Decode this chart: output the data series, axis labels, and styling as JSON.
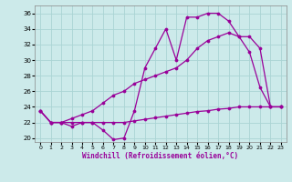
{
  "xlabel": "Windchill (Refroidissement éolien,°C)",
  "bg_color": "#cceaea",
  "line_color": "#990099",
  "grid_color": "#aad4d4",
  "ylim": [
    19.5,
    37.0
  ],
  "xlim": [
    -0.5,
    23.5
  ],
  "yticks": [
    20,
    22,
    24,
    26,
    28,
    30,
    32,
    34,
    36
  ],
  "xticks": [
    0,
    1,
    2,
    3,
    4,
    5,
    6,
    7,
    8,
    9,
    10,
    11,
    12,
    13,
    14,
    15,
    16,
    17,
    18,
    19,
    20,
    21,
    22,
    23
  ],
  "line1_x": [
    0,
    1,
    2,
    3,
    4,
    5,
    6,
    7,
    8,
    9,
    10,
    11,
    12,
    13,
    14,
    15,
    16,
    17,
    18,
    19,
    20,
    21,
    22,
    23
  ],
  "line1_y": [
    23.5,
    22.0,
    22.0,
    21.5,
    22.0,
    22.0,
    21.0,
    19.8,
    20.0,
    23.5,
    29.0,
    31.5,
    34.0,
    30.0,
    35.5,
    35.5,
    36.0,
    36.0,
    35.0,
    33.0,
    31.0,
    26.5,
    24.0,
    24.0
  ],
  "line2_x": [
    0,
    1,
    2,
    3,
    4,
    5,
    6,
    7,
    8,
    9,
    10,
    11,
    12,
    13,
    14,
    15,
    16,
    17,
    18,
    19,
    20,
    21,
    22,
    23
  ],
  "line2_y": [
    23.5,
    22.0,
    22.0,
    22.5,
    23.0,
    23.5,
    24.5,
    25.5,
    26.0,
    27.0,
    27.5,
    28.0,
    28.5,
    29.0,
    30.0,
    31.5,
    32.5,
    33.0,
    33.5,
    33.0,
    33.0,
    31.5,
    24.0,
    24.0
  ],
  "line3_x": [
    0,
    1,
    2,
    3,
    4,
    5,
    6,
    7,
    8,
    9,
    10,
    11,
    12,
    13,
    14,
    15,
    16,
    17,
    18,
    19,
    20,
    21,
    22,
    23
  ],
  "line3_y": [
    23.5,
    22.0,
    22.0,
    22.0,
    22.0,
    22.0,
    22.0,
    22.0,
    22.0,
    22.2,
    22.4,
    22.6,
    22.8,
    23.0,
    23.2,
    23.4,
    23.5,
    23.7,
    23.8,
    24.0,
    24.0,
    24.0,
    24.0,
    24.0
  ]
}
